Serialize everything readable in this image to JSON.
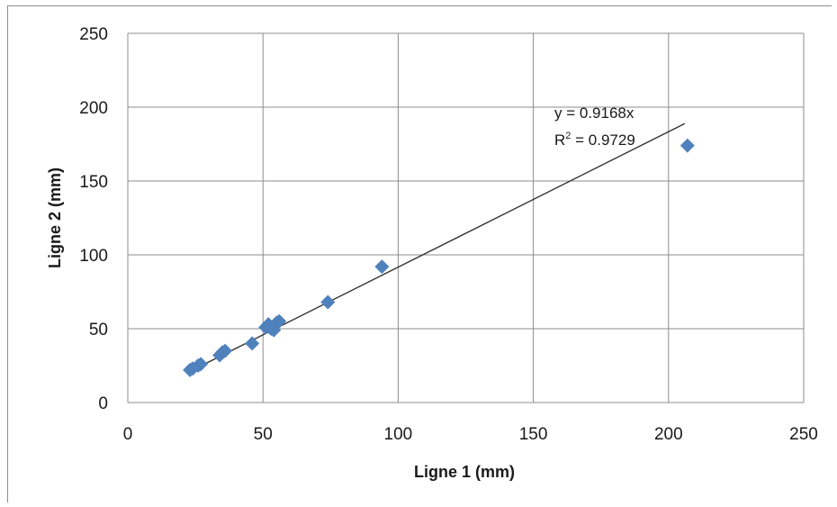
{
  "chart_data": {
    "type": "scatter",
    "title": "",
    "xlabel": "Ligne 1 (mm)",
    "ylabel": "Ligne 2 (mm)",
    "xlim": [
      0,
      250
    ],
    "ylim": [
      0,
      250
    ],
    "xticks": [
      0,
      50,
      100,
      150,
      200,
      250
    ],
    "yticks": [
      0,
      50,
      100,
      150,
      200,
      250
    ],
    "grid": true,
    "legend": "none",
    "marker_color": "#4f81bd",
    "series": [
      {
        "marker": "diamond",
        "points": [
          {
            "x": 23,
            "y": 22
          },
          {
            "x": 24,
            "y": 23
          },
          {
            "x": 26,
            "y": 25
          },
          {
            "x": 27,
            "y": 26
          },
          {
            "x": 34,
            "y": 32
          },
          {
            "x": 35,
            "y": 34
          },
          {
            "x": 36,
            "y": 35
          },
          {
            "x": 46,
            "y": 40
          },
          {
            "x": 51,
            "y": 51
          },
          {
            "x": 52,
            "y": 53
          },
          {
            "x": 53,
            "y": 50
          },
          {
            "x": 54,
            "y": 49
          },
          {
            "x": 55,
            "y": 54
          },
          {
            "x": 56,
            "y": 55
          },
          {
            "x": 74,
            "y": 68
          },
          {
            "x": 94,
            "y": 92
          },
          {
            "x": 207,
            "y": 174
          }
        ]
      }
    ],
    "trendline": {
      "slope": 0.9168,
      "intercept": 0,
      "x_range": [
        23,
        206
      ],
      "color": "#333333",
      "equation_label": "y = 0.9168x",
      "r2_label": "R",
      "r2_superscript": "2",
      "r2_value": " = 0.9729"
    }
  }
}
